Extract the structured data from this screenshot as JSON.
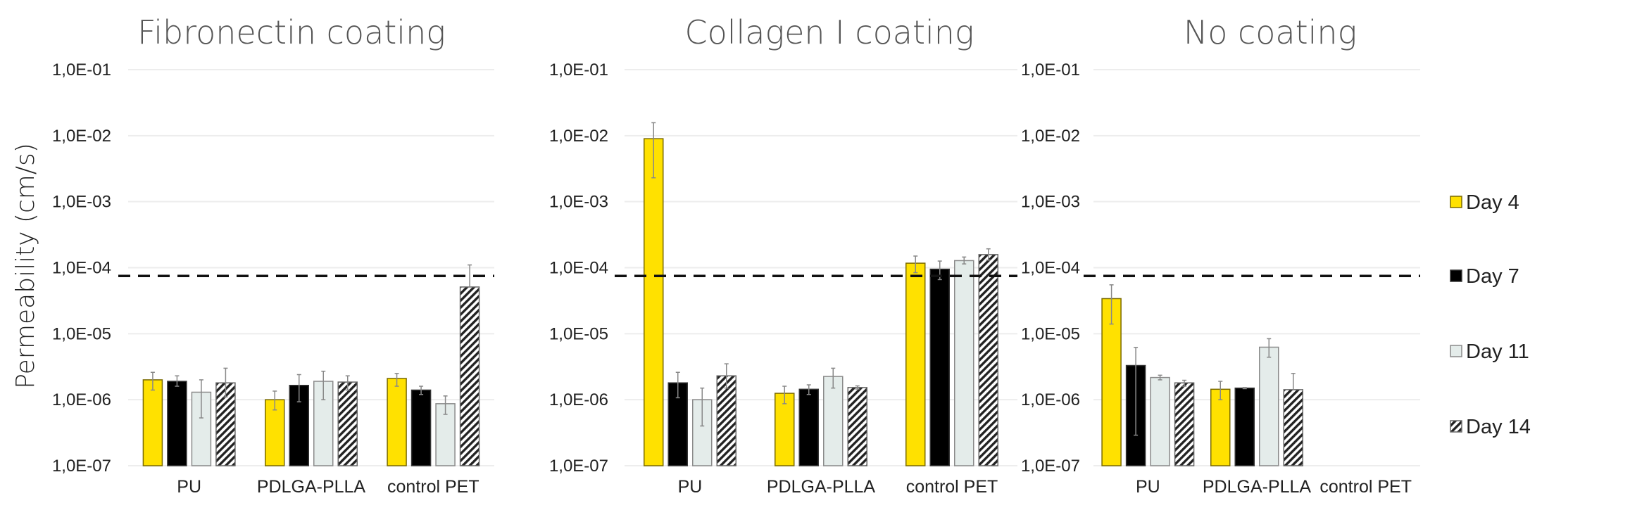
{
  "y_axis_label": "Permeability (cm/s)",
  "legend": [
    {
      "label": "Day 4",
      "style": "yellow"
    },
    {
      "label": "Day 7",
      "style": "black"
    },
    {
      "label": "Day 11",
      "style": "light"
    },
    {
      "label": "Day 14",
      "style": "hatch"
    }
  ],
  "colors": {
    "yellow": "#FFE100",
    "yellow_border": "#7A6A00",
    "black": "#000000",
    "light": "#E4ECEA",
    "light_border": "#8A8A8A",
    "grid": "#EDEDED",
    "error": "#888888"
  },
  "chart_data": [
    {
      "type": "bar",
      "title": "Fibronectin coating",
      "yscale": "log",
      "ylim": [
        1e-07,
        0.1
      ],
      "yticks": [
        "1,0E-01",
        "1,0E-02",
        "1,0E-03",
        "1,0E-04",
        "1,0E-05",
        "1,0E-06",
        "1,0E-07"
      ],
      "reference_line": 7.5e-05,
      "categories": [
        "PU",
        "PDLGA-PLLA",
        "control PET"
      ],
      "series": [
        {
          "name": "Day 4",
          "values": [
            2e-06,
            1e-06,
            2.1e-06
          ],
          "err_low": [
            1.4e-06,
            7e-07,
            1.6e-06
          ],
          "err_high": [
            2.6e-06,
            1.35e-06,
            2.5e-06
          ]
        },
        {
          "name": "Day 7",
          "values": [
            1.9e-06,
            1.65e-06,
            1.4e-06
          ],
          "err_low": [
            1.6e-06,
            9.3e-07,
            1.2e-06
          ],
          "err_high": [
            2.3e-06,
            2.4e-06,
            1.6e-06
          ]
        },
        {
          "name": "Day 11",
          "values": [
            1.3e-06,
            1.9e-06,
            8.7e-07
          ],
          "err_low": [
            5.3e-07,
            1e-06,
            6e-07
          ],
          "err_high": [
            2e-06,
            2.7e-06,
            1.14e-06
          ]
        },
        {
          "name": "Day 14",
          "values": [
            1.8e-06,
            1.85e-06,
            5.1e-05
          ],
          "err_low": [
            1.1e-06,
            1.4e-06,
            null
          ],
          "err_high": [
            3e-06,
            2.3e-06,
            0.00011
          ]
        }
      ]
    },
    {
      "type": "bar",
      "title": "Collagen I coating",
      "yscale": "log",
      "ylim": [
        1e-07,
        0.1
      ],
      "yticks": [
        "1,0E-01",
        "1,0E-02",
        "1,0E-03",
        "1,0E-04",
        "1,0E-05",
        "1,0E-06",
        "1,0E-07"
      ],
      "reference_line": 7.5e-05,
      "categories": [
        "PU",
        "PDLGA-PLLA",
        "control PET"
      ],
      "series": [
        {
          "name": "Day 4",
          "values": [
            0.009,
            1.25e-06,
            0.000117
          ],
          "err_low": [
            0.0023,
            8.7e-07,
            8.4e-05
          ],
          "err_high": [
            0.0157,
            1.6e-06,
            0.00015
          ]
        },
        {
          "name": "Day 7",
          "values": [
            1.8e-06,
            1.44e-06,
            9.5e-05
          ],
          "err_low": [
            1.07e-06,
            1.2e-06,
            6.6e-05
          ],
          "err_high": [
            2.6e-06,
            1.68e-06,
            0.000126
          ]
        },
        {
          "name": "Day 11",
          "values": [
            1e-06,
            2.25e-06,
            0.000128
          ],
          "err_low": [
            4e-07,
            1.5e-06,
            0.000114
          ],
          "err_high": [
            1.5e-06,
            3e-06,
            0.000145
          ]
        },
        {
          "name": "Day 14",
          "values": [
            2.3e-06,
            1.53e-06,
            0.000158
          ],
          "err_low": [
            1.5e-06,
            1.45e-06,
            0.00013
          ],
          "err_high": [
            3.5e-06,
            1.62e-06,
            0.000193
          ]
        }
      ]
    },
    {
      "type": "bar",
      "title": "No coating",
      "yscale": "log",
      "ylim": [
        1e-07,
        0.1
      ],
      "yticks": [
        "1,0E-01",
        "1,0E-02",
        "1,0E-03",
        "1,0E-04",
        "1,0E-05",
        "1,0E-06",
        "1,0E-07"
      ],
      "reference_line": 7.5e-05,
      "categories": [
        "PU",
        "PDLGA-PLLA",
        "control PET"
      ],
      "series": [
        {
          "name": "Day 4",
          "values": [
            3.4e-05,
            1.44e-06,
            null
          ],
          "err_low": [
            1.4e-05,
            1e-06,
            null
          ],
          "err_high": [
            5.5e-05,
            1.9e-06,
            null
          ]
        },
        {
          "name": "Day 7",
          "values": [
            3.3e-06,
            1.5e-06,
            null
          ],
          "err_low": [
            2.9e-07,
            1.47e-06,
            null
          ],
          "err_high": [
            6.2e-06,
            1.53e-06,
            null
          ]
        },
        {
          "name": "Day 11",
          "values": [
            2.17e-06,
            6.25e-06,
            null
          ],
          "err_low": [
            2e-06,
            4.4e-06,
            null
          ],
          "err_high": [
            2.35e-06,
            8.4e-06,
            null
          ]
        },
        {
          "name": "Day 14",
          "values": [
            1.8e-06,
            1.42e-06,
            null
          ],
          "err_low": [
            1.6e-06,
            null,
            null
          ],
          "err_high": [
            1.97e-06,
            2.5e-06,
            null
          ]
        }
      ]
    }
  ]
}
